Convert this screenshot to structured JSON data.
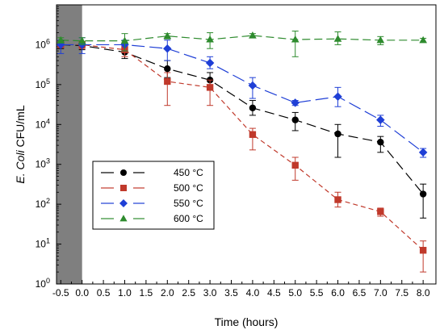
{
  "chart_data": {
    "type": "line",
    "xlabel": "Time (hours)",
    "ylabel_italic": "E. Coli",
    "ylabel_rest": " CFU/mL",
    "y_scale": "log",
    "xlim": [
      -0.6,
      8.3
    ],
    "ylim": [
      1,
      10000000
    ],
    "x_ticks": [
      "-0.5",
      "0.0",
      "0.5",
      "1.0",
      "1.5",
      "2.0",
      "2.5",
      "3.0",
      "3.5",
      "4.0",
      "4.5",
      "5.0",
      "5.5",
      "6.0",
      "6.5",
      "7.0",
      "7.5",
      "8.0"
    ],
    "y_ticks": [
      {
        "base": "10",
        "exp": "0"
      },
      {
        "base": "10",
        "exp": "1"
      },
      {
        "base": "10",
        "exp": "2"
      },
      {
        "base": "10",
        "exp": "3"
      },
      {
        "base": "10",
        "exp": "4"
      },
      {
        "base": "10",
        "exp": "5"
      },
      {
        "base": "10",
        "exp": "6"
      }
    ],
    "shaded_region": {
      "x_start": -0.6,
      "x_end": 0.0,
      "color": "#7f7f7f"
    },
    "legend_position": "center-left",
    "series": [
      {
        "name": "450 °C",
        "color": "#000000",
        "marker": "circle",
        "dash": "12,6",
        "x": [
          -0.5,
          0,
          1,
          2,
          3,
          4,
          5,
          6,
          7,
          8
        ],
        "y": [
          1000000,
          950000,
          650000,
          250000,
          130000,
          26000,
          13000,
          5800,
          3600,
          180
        ],
        "y_lo": [
          800000,
          750000,
          450000,
          150000,
          80000,
          17000,
          7000,
          1500,
          2000,
          45
        ],
        "y_hi": [
          1250000,
          1200000,
          900000,
          400000,
          200000,
          40000,
          20000,
          10000,
          5000,
          320
        ]
      },
      {
        "name": "500 °C",
        "color": "#c0392b",
        "marker": "square",
        "dash": "6,4",
        "x": [
          -0.5,
          0,
          1,
          2,
          3,
          4,
          5,
          6,
          7,
          8
        ],
        "y": [
          1000000,
          1000000,
          750000,
          120000,
          85000,
          5600,
          950,
          130,
          65,
          7
        ],
        "y_lo": [
          900000,
          800000,
          500000,
          30000,
          30000,
          2300,
          400,
          85,
          50,
          2
        ],
        "y_hi": [
          1100000,
          1200000,
          1000000,
          200000,
          130000,
          8000,
          1500,
          200,
          80,
          12
        ]
      },
      {
        "name": "550 °C",
        "color": "#1f3fd6",
        "marker": "diamond",
        "dash": "16,6",
        "x": [
          -0.5,
          0,
          1,
          2,
          3,
          4,
          5,
          6,
          7,
          8
        ],
        "y": [
          1000000,
          1000000,
          1000000,
          800000,
          350000,
          95000,
          35000,
          50000,
          13000,
          2000
        ],
        "y_lo": [
          600000,
          600000,
          700000,
          400000,
          250000,
          45000,
          30000,
          28000,
          9000,
          1500
        ],
        "y_hi": [
          1300000,
          1500000,
          1300000,
          1300000,
          500000,
          150000,
          40000,
          85000,
          17000,
          2500
        ]
      },
      {
        "name": "600 °C",
        "color": "#2e8b2e",
        "marker": "triangle",
        "dash": "10,5",
        "x": [
          -0.5,
          0,
          1,
          2,
          3,
          4,
          5,
          6,
          7,
          8
        ],
        "y": [
          1300000,
          1250000,
          1250000,
          1650000,
          1350000,
          1700000,
          1350000,
          1400000,
          1300000,
          1300000
        ],
        "y_lo": [
          1100000,
          1000000,
          700000,
          1400000,
          800000,
          1500000,
          500000,
          1000000,
          1000000,
          1150000
        ],
        "y_hi": [
          1500000,
          1500000,
          1900000,
          1900000,
          2000000,
          1900000,
          2200000,
          2100000,
          1600000,
          1450000
        ]
      }
    ]
  }
}
